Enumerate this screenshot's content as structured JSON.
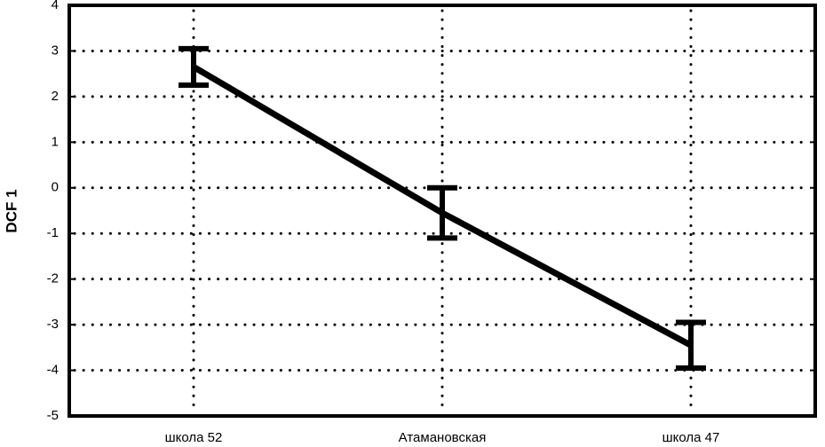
{
  "chart_data": {
    "type": "line",
    "ylabel": "DCF 1",
    "categories": [
      "школа 52",
      "Атамановская",
      "школа 47"
    ],
    "values": [
      2.65,
      -0.55,
      -3.45
    ],
    "errors": [
      0.4,
      0.55,
      0.5
    ],
    "color": "#000000",
    "ylim": [
      -5,
      4
    ],
    "yticks": [
      -5,
      -4,
      -3,
      -2,
      -1,
      0,
      1,
      2,
      3,
      4
    ],
    "grid": true
  }
}
